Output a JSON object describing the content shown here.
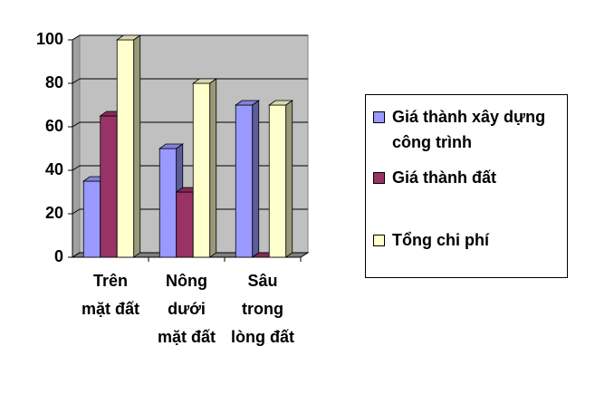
{
  "chart_data": {
    "type": "bar3d",
    "categories": [
      [
        "Trên",
        "mặt đất"
      ],
      [
        "Nông",
        "dưới",
        "mặt đất"
      ],
      [
        "Sâu",
        "trong",
        "lòng đất"
      ]
    ],
    "series": [
      {
        "name": "Giá thành xây dựng công trình",
        "color": "#9999ff",
        "values": [
          35,
          50,
          70
        ]
      },
      {
        "name": "Giá thành đất",
        "color": "#993366",
        "values": [
          65,
          30,
          0
        ]
      },
      {
        "name": "Tổng chi phí",
        "color": "#ffffcc",
        "values": [
          100,
          80,
          70
        ]
      }
    ],
    "ylim": [
      0,
      100
    ],
    "yticks": [
      0,
      20,
      40,
      60,
      80,
      100
    ],
    "grid": true,
    "legend": "right"
  }
}
